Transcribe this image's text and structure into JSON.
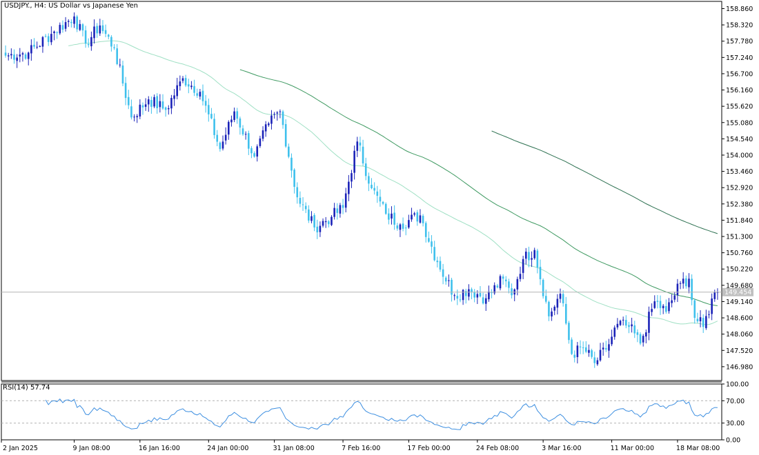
{
  "window": {
    "title": "USDJPY., H4:  US Dollar vs Japanese Yen"
  },
  "colors": {
    "bull_candle": "#1a22b8",
    "bear_candle": "#3ec0ec",
    "ma_fast": "#9fe0c4",
    "ma_mid": "#3d9960",
    "ma_slow": "#2c7050",
    "rsi_line": "#3c8ee0",
    "price_line": "#b4b4b4",
    "current_price_box": "#c0c0c0"
  },
  "chart_data": [
    {
      "type": "candlestick",
      "symbol": "USDJPY.",
      "timeframe": "H4",
      "current_price": 149.454,
      "current_price_label": "149.454",
      "ylim": [
        146.52,
        159.1
      ],
      "y_ticks": [
        "158.860",
        "158.320",
        "157.780",
        "157.240",
        "156.700",
        "156.160",
        "155.620",
        "155.080",
        "154.540",
        "154.000",
        "153.460",
        "152.920",
        "152.380",
        "151.840",
        "151.300",
        "150.760",
        "150.220",
        "149.680",
        "149.140",
        "148.600",
        "148.060",
        "147.520",
        "146.980"
      ],
      "x_ticks": [
        "2 Jan 2025",
        "9 Jan 08:00",
        "16 Jan 16:00",
        "24 Jan 00:00",
        "31 Jan 08:00",
        "7 Feb 16:00",
        "17 Feb 00:00",
        "24 Feb 08:00",
        "3 Mar 16:00",
        "11 Mar 00:00",
        "18 Mar 08:00"
      ],
      "anchors": [
        [
          0,
          157.3
        ],
        [
          8,
          157.4
        ],
        [
          17,
          158.1
        ],
        [
          24,
          158.6
        ],
        [
          28,
          157.7
        ],
        [
          33,
          158.3
        ],
        [
          38,
          157.55
        ],
        [
          44,
          155.25
        ],
        [
          50,
          155.85
        ],
        [
          56,
          155.5
        ],
        [
          62,
          156.55
        ],
        [
          68,
          156.1
        ],
        [
          75,
          154.2
        ],
        [
          80,
          155.45
        ],
        [
          87,
          153.95
        ],
        [
          92,
          155.05
        ],
        [
          96,
          155.45
        ],
        [
          102,
          152.6
        ],
        [
          108,
          151.6
        ],
        [
          114,
          151.95
        ],
        [
          118,
          152.25
        ],
        [
          123,
          154.45
        ],
        [
          128,
          152.9
        ],
        [
          133,
          152.05
        ],
        [
          138,
          151.7
        ],
        [
          145,
          152.0
        ],
        [
          151,
          150.45
        ],
        [
          157,
          149.35
        ],
        [
          162,
          149.55
        ],
        [
          168,
          149.25
        ],
        [
          174,
          149.9
        ],
        [
          177,
          149.35
        ],
        [
          181,
          150.55
        ],
        [
          185,
          150.85
        ],
        [
          190,
          148.65
        ],
        [
          194,
          149.4
        ],
        [
          198,
          147.4
        ],
        [
          202,
          147.6
        ],
        [
          206,
          147.1
        ],
        [
          210,
          147.55
        ],
        [
          214,
          148.4
        ],
        [
          218,
          148.3
        ],
        [
          222,
          147.75
        ],
        [
          227,
          149.15
        ],
        [
          231,
          148.8
        ],
        [
          236,
          149.75
        ],
        [
          239,
          149.9
        ],
        [
          241,
          148.6
        ],
        [
          244,
          148.3
        ],
        [
          248,
          149.45
        ]
      ],
      "rsi": {
        "label": "RSI(14) 57.74",
        "period": 14,
        "value": 57.74,
        "ylim": [
          0,
          100
        ],
        "y_ticks": [
          "100.00",
          "70.00",
          "30.00",
          "0.00"
        ],
        "levels": [
          70,
          30
        ]
      },
      "moving_averages": [
        {
          "period": 50,
          "role": "fast"
        },
        {
          "period": 100,
          "role": "mid"
        },
        {
          "period": 200,
          "role": "slow"
        }
      ]
    }
  ]
}
